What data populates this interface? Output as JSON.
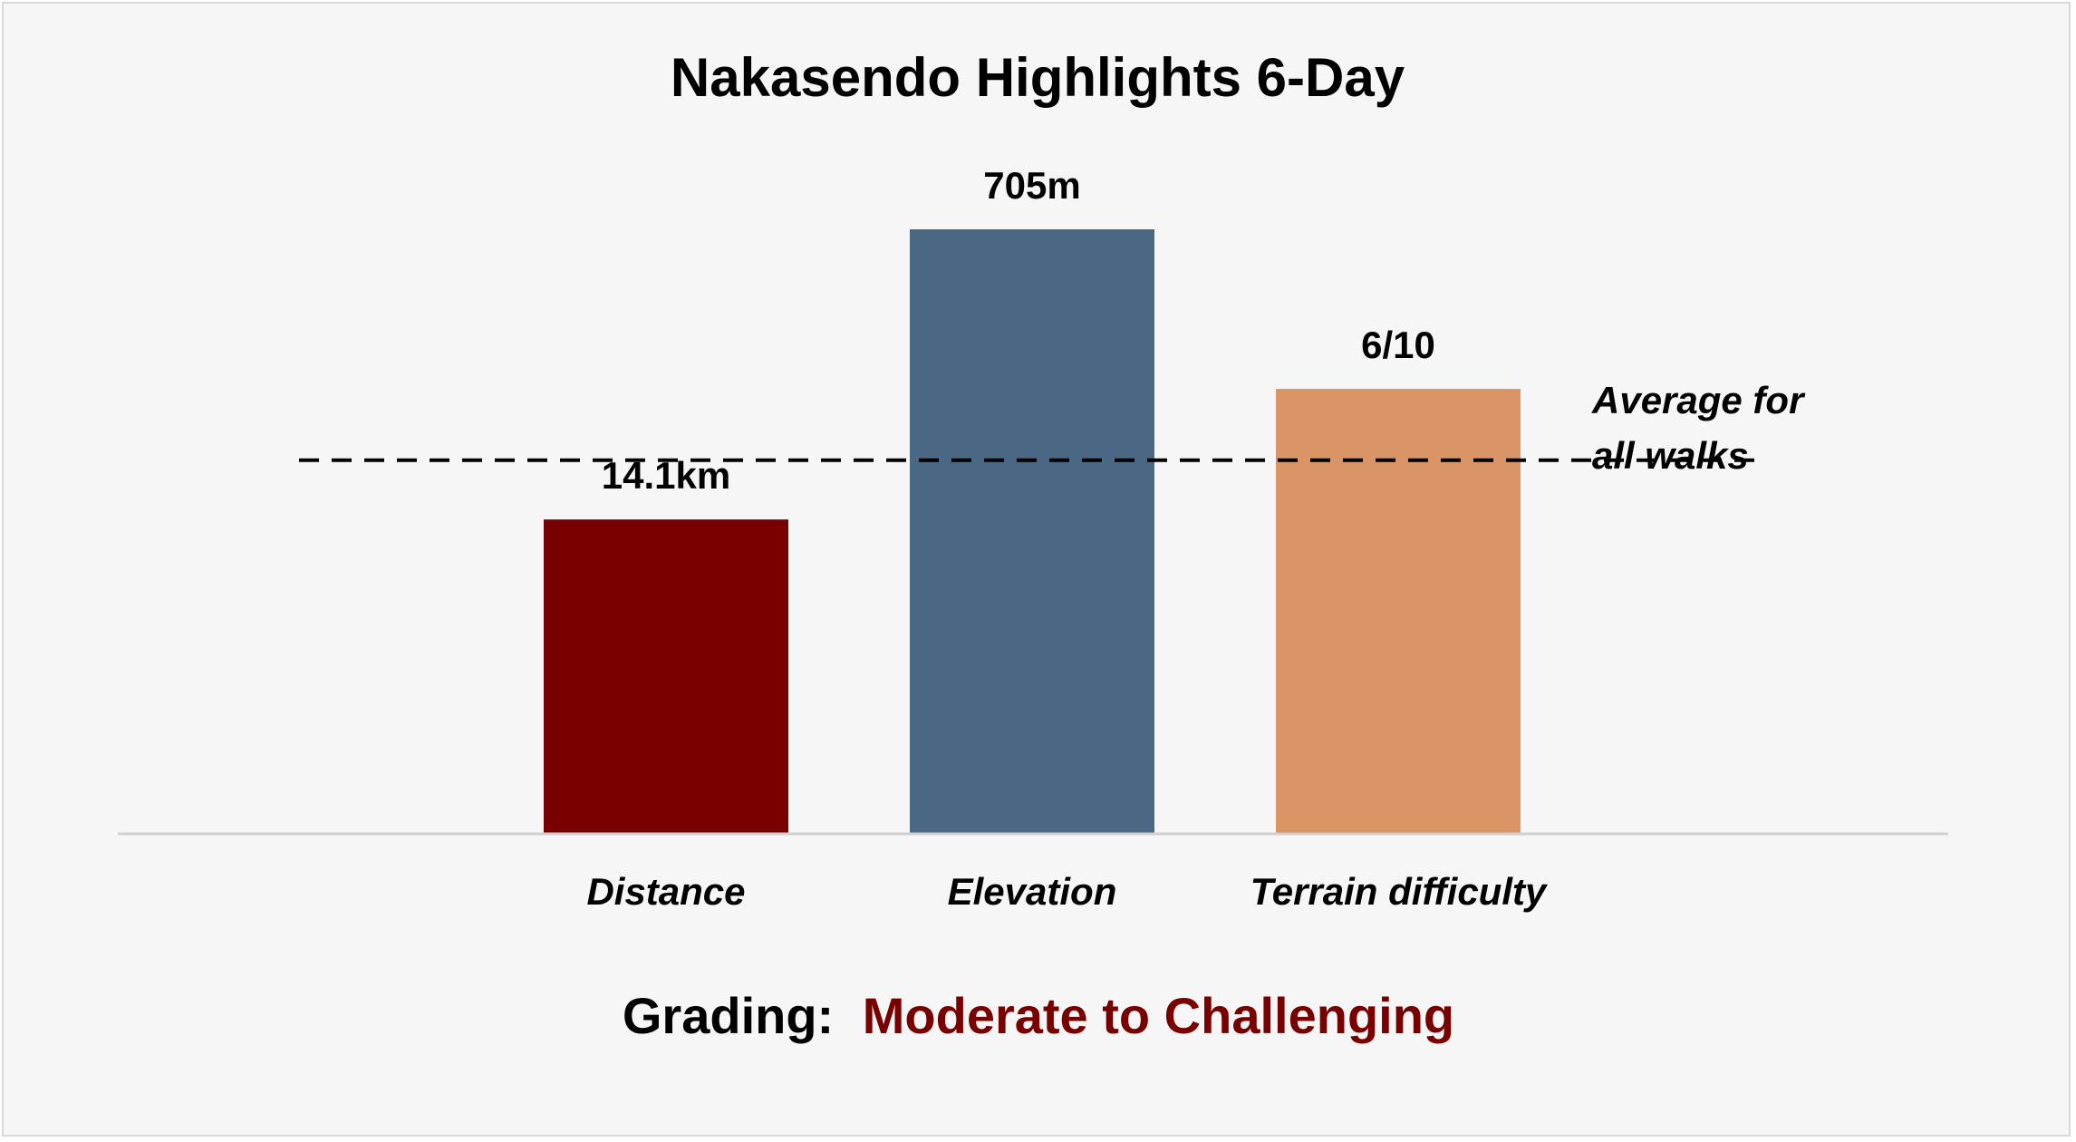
{
  "chart_data": {
    "type": "bar",
    "title": "Nakasendo Highlights 6-Day",
    "categories": [
      "Distance",
      "Elevation",
      "Terrain difficulty"
    ],
    "values": [
      52,
      100,
      73.6
    ],
    "data_labels": [
      "14.1km",
      "705m",
      "6/10"
    ],
    "colors": [
      "#780000",
      "#4a6884",
      "#d99566"
    ],
    "ylim": [
      0,
      100
    ],
    "reference_line": {
      "value": 61.8,
      "label_line1": "Average for",
      "label_line2": "all walks",
      "style": "dashed"
    },
    "grid": false,
    "legend": "none"
  },
  "footer": {
    "grading_label": "Grading:",
    "grading_value": "Moderate to Challenging",
    "grading_value_color": "#780000"
  }
}
